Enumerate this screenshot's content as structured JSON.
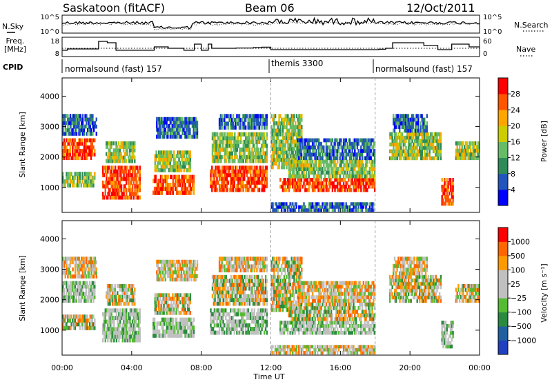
{
  "header": {
    "station": "Saskatoon (fitACF)",
    "beam": "Beam 06",
    "date": "12/Oct/2011"
  },
  "side_labels": {
    "nsky": "N.Sky",
    "freq_line1": "Freq.",
    "freq_line2": "[MHz]",
    "cpid": "CPID",
    "nsearch": "N.Search",
    "nave": "Nave"
  },
  "colors": {
    "power_scale": [
      "#0000ff",
      "#2255bb",
      "#2e8b57",
      "#66bb66",
      "#cccc00",
      "#ffa500",
      "#ff5500",
      "#ff0000"
    ],
    "velocity_scale": [
      "#2040c0",
      "#2060a0",
      "#2a8a40",
      "#55bb33",
      "#c0c0c0",
      "#c0c0c0",
      "#ff9900",
      "#ff6600",
      "#ff0000"
    ],
    "ground_scatter": "#c0c0c0"
  },
  "chart_data": [
    {
      "type": "line",
      "name": "noise-panel",
      "ylabel_left": "N.Sky",
      "ylabel_right": "N.Search",
      "left_ticks": [
        "10^5",
        "10^0"
      ],
      "right_ticks": [
        "10^5",
        "10^0"
      ]
    },
    {
      "type": "line",
      "name": "frequency-panel",
      "left_ticks": [
        "18",
        "8"
      ],
      "right_ticks": [
        "60",
        "0"
      ],
      "frequency_steps": [
        {
          "t": 0.0,
          "f": 10.6
        },
        {
          "t": 0.3,
          "f": 11.5
        },
        {
          "t": 2.1,
          "f": 17.0
        },
        {
          "t": 2.6,
          "f": 16.0
        },
        {
          "t": 3.1,
          "f": 10.6
        },
        {
          "t": 5.3,
          "f": 13.0
        },
        {
          "t": 6.1,
          "f": 12.0
        },
        {
          "t": 7.0,
          "f": 10.6
        },
        {
          "t": 7.6,
          "f": 15.0
        },
        {
          "t": 8.0,
          "f": 10.6
        },
        {
          "t": 8.4,
          "f": 15.0
        },
        {
          "t": 8.6,
          "f": 12.0
        },
        {
          "t": 10.0,
          "f": 12.2
        },
        {
          "t": 11.0,
          "f": 12.5
        },
        {
          "t": 11.5,
          "f": 12.8
        },
        {
          "t": 12.0,
          "f": 11.0
        },
        {
          "t": 18.2,
          "f": 11.3
        },
        {
          "t": 18.6,
          "f": 12.0
        },
        {
          "t": 19.0,
          "f": 16.0
        },
        {
          "t": 20.8,
          "f": 14.0
        },
        {
          "t": 21.6,
          "f": 11.0
        },
        {
          "t": 22.4,
          "f": 15.0
        },
        {
          "t": 23.4,
          "f": 13.0
        },
        {
          "t": 24.0,
          "f": 13.0
        }
      ]
    },
    {
      "type": "table",
      "name": "cpid-bar",
      "segments": [
        {
          "start": 0,
          "end": 12,
          "label": "normalsound (fast) 157"
        },
        {
          "start": 12,
          "end": 18,
          "label": "themis 3300"
        },
        {
          "start": 18,
          "end": 24,
          "label": "normalsound (fast) 157"
        }
      ]
    },
    {
      "type": "heatmap",
      "name": "power-panel",
      "ylabel": "Slant Range [km]",
      "ylim": [
        180,
        4600
      ],
      "yticks": [
        1000,
        2000,
        3000,
        4000
      ],
      "colorbar_label": "Power [dB]",
      "colorbar_ticks": [
        "28",
        "24",
        "20",
        "16",
        "12",
        "8",
        "4"
      ],
      "colorbar_range": [
        0,
        32
      ]
    },
    {
      "type": "heatmap",
      "name": "velocity-panel",
      "ylabel": "Slant Range [km]",
      "ylim": [
        180,
        4600
      ],
      "yticks": [
        1000,
        2000,
        3000,
        4000
      ],
      "colorbar_label": "Velocity [m s⁻¹]",
      "colorbar_ticks": [
        "1000",
        "500",
        "100",
        "25",
        "−25",
        "−100",
        "−500",
        "−1000"
      ]
    }
  ],
  "time_axis": {
    "xlabel": "Time UT",
    "xlim": [
      0,
      24
    ],
    "ticks": [
      "00:00",
      "04:00",
      "08:00",
      "12:00",
      "16:00",
      "20:00",
      "00:00"
    ],
    "tick_hours": [
      0,
      4,
      8,
      12,
      16,
      20,
      24
    ],
    "mode_change_hours": [
      12,
      18
    ]
  }
}
